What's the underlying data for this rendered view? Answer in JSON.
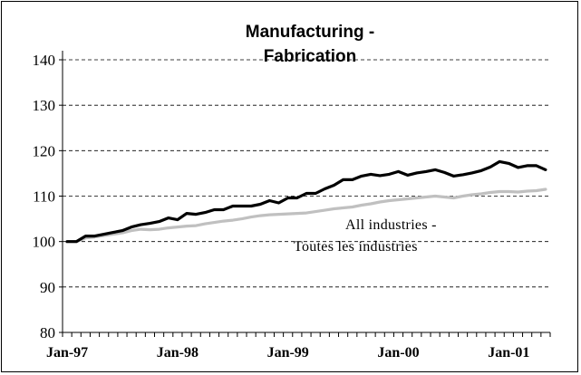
{
  "chart_data": {
    "type": "line",
    "title": "Manufacturing -",
    "subtitle": "Fabrication",
    "xlabel": "",
    "ylabel": "",
    "ylim": [
      80,
      140
    ],
    "yticks": [
      80,
      90,
      100,
      110,
      120,
      130,
      140
    ],
    "grid": "horizontal dashed",
    "legend": "none",
    "x_tick_labels": [
      "Jan-97",
      "Jan-98",
      "Jan-99",
      "Jan-00",
      "Jan-01"
    ],
    "x_tick_months": [
      0,
      12,
      24,
      36,
      48
    ],
    "x_months_total": 53,
    "series": [
      {
        "name": "",
        "color": "#000000",
        "values": [
          100,
          100,
          101.2,
          101.2,
          101.6,
          102,
          102.4,
          103.2,
          103.7,
          104,
          104.4,
          105.2,
          104.8,
          106.2,
          106,
          106.4,
          107,
          107,
          107.8,
          107.8,
          107.8,
          108.2,
          109,
          108.5,
          109.6,
          109.6,
          110.6,
          110.6,
          111.6,
          112.4,
          113.6,
          113.6,
          114.4,
          114.8,
          114.5,
          114.8,
          115.4,
          114.6,
          115.1,
          115.4,
          115.8,
          115.2,
          114.4,
          114.7,
          115.1,
          115.6,
          116.4,
          117.6,
          117.2,
          116.3,
          116.7,
          116.7,
          115.8
        ]
      },
      {
        "name": "All industries - Toutes les industries",
        "color": "#c0c0c0",
        "values": [
          100,
          100,
          100.8,
          101,
          101.3,
          101.6,
          101.9,
          102.4,
          102.7,
          102.6,
          102.7,
          103,
          103.2,
          103.4,
          103.5,
          103.9,
          104.2,
          104.5,
          104.7,
          105,
          105.4,
          105.7,
          105.9,
          106,
          106.1,
          106.2,
          106.3,
          106.6,
          106.9,
          107.2,
          107.4,
          107.6,
          108,
          108.3,
          108.7,
          109,
          109.2,
          109.4,
          109.6,
          109.8,
          110,
          109.8,
          109.6,
          110,
          110.3,
          110.5,
          110.8,
          111,
          111,
          110.9,
          111.1,
          111.2,
          111.5
        ]
      }
    ],
    "annotations": [
      "All industries -",
      "Toutes les industries"
    ]
  }
}
